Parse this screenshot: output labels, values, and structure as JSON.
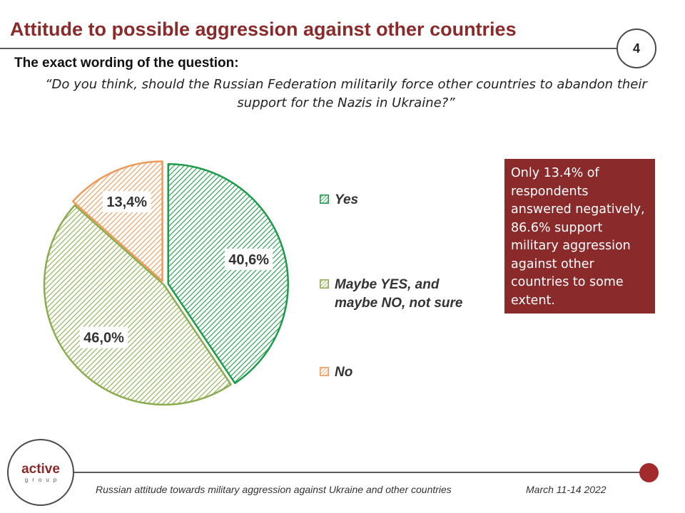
{
  "header": {
    "title": "Attitude to possible aggression against other countries",
    "page_number": "4"
  },
  "question": {
    "label": "The exact wording of the question:",
    "text": "“Do you think, should the Russian Federation militarily force other countries to abandon their support for the Nazis in Ukraine?”"
  },
  "chart_data": {
    "type": "pie",
    "title": "",
    "categories": [
      "Yes",
      "Maybe YES, and maybe NO, not sure",
      "No"
    ],
    "values": [
      40.6,
      46.0,
      13.4
    ],
    "data_labels": [
      "40,6%",
      "46,0%",
      "13,4%"
    ],
    "colors": [
      "#1e9b4a",
      "#8bad4e",
      "#ec9b5a"
    ],
    "fill_pattern": "diagonal-hatch",
    "legend_position": "right"
  },
  "legend": {
    "items": [
      {
        "label": "Yes",
        "color": "#1e9b4a"
      },
      {
        "label": "Maybe YES, and maybe NO, not sure",
        "color": "#8bad4e"
      },
      {
        "label": "No",
        "color": "#ec9b5a"
      }
    ]
  },
  "note": {
    "text": "Only 13.4% of respondents answered negatively, 86.6% support military aggression against other countries to some extent.",
    "background": "#8b2a2a"
  },
  "footer": {
    "logo_main": "active",
    "logo_sub": "group",
    "text": "Russian attitude towards military aggression against Ukraine and other countries",
    "date": "March 11-14 2022"
  },
  "colors": {
    "accent": "#8b2a2a",
    "footer_dot": "#a32a2a"
  }
}
